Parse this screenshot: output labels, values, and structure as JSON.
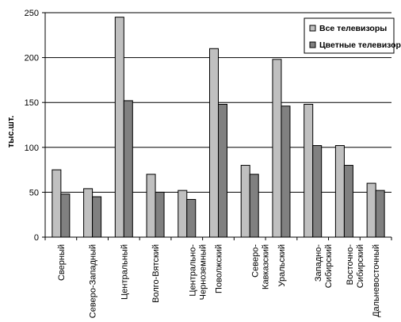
{
  "chart_data": {
    "type": "bar",
    "title": "",
    "xlabel": "",
    "ylabel": "тыс.шт.",
    "ylim": [
      0,
      250
    ],
    "yticks": [
      0,
      50,
      100,
      150,
      200,
      250
    ],
    "grid": true,
    "legend_position": "top-right",
    "categories": [
      "Сверный",
      "Северо-Западный",
      "Центральный",
      "Волго-Вятский",
      "Центрально-\nЧерноземный",
      "Поволжский",
      "Северо-\nКавказский",
      "Уральский",
      "Западно-\nСибирский",
      "Восточно-\nСибирский",
      "Дальневосточный"
    ],
    "series": [
      {
        "name": "Все телевизоры",
        "color": "#c0c0c0",
        "values": [
          75,
          54,
          245,
          70,
          52,
          210,
          80,
          198,
          148,
          102,
          60
        ]
      },
      {
        "name": "Цветные телевизоры",
        "color": "#808080",
        "values": [
          48,
          45,
          152,
          50,
          42,
          148,
          70,
          146,
          102,
          80,
          52
        ]
      }
    ]
  }
}
